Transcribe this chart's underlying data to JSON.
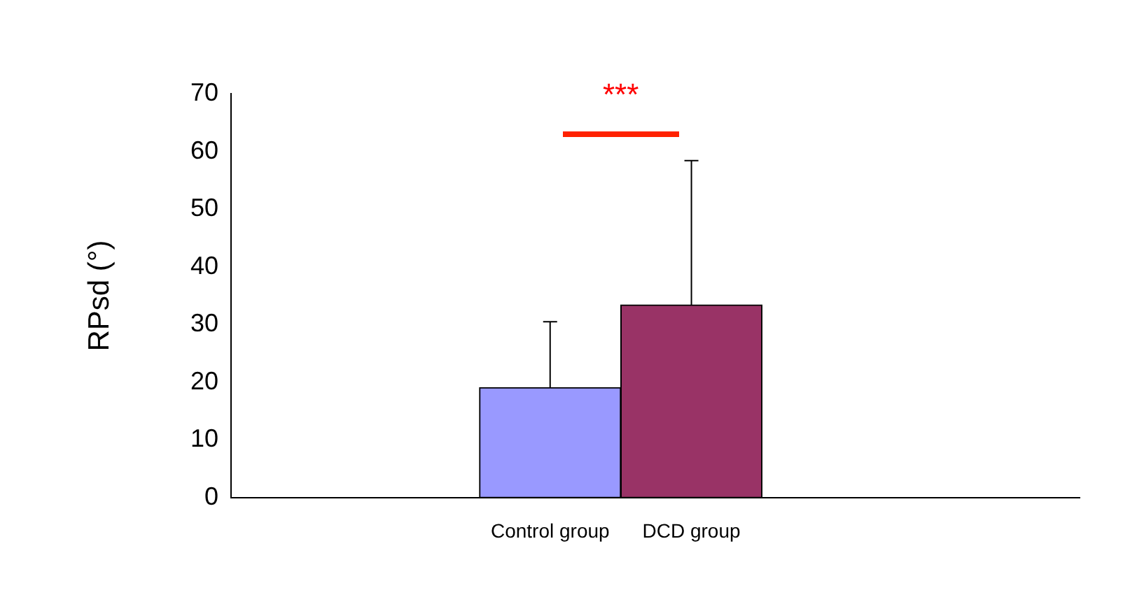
{
  "chart_data": {
    "type": "bar",
    "ylabel": "RPsd (°)",
    "categories": [
      "Control group",
      "DCD group"
    ],
    "values": [
      19.1,
      33.4
    ],
    "colors": [
      "#9999ff",
      "#993366"
    ],
    "errors": [
      [
        19.1,
        30.5
      ],
      [
        33.4,
        58.4
      ]
    ],
    "ylim": [
      0,
      70
    ],
    "yticks": [
      0,
      10,
      20,
      30,
      40,
      50,
      60,
      70
    ],
    "annotations": [
      "***"
    ],
    "grid": false,
    "legend": false
  }
}
